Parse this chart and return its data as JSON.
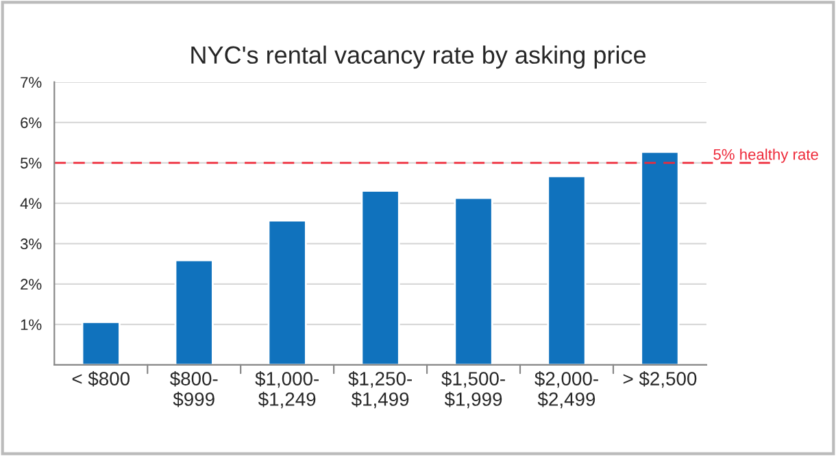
{
  "chart_data": {
    "type": "bar",
    "title": "NYC's rental vacancy rate by asking price",
    "categories": [
      "< $800",
      "$800-\n$999",
      "$1,000-\n$1,249",
      "$1,250-\n$1,499",
      "$1,500-\n$1,999",
      "$2,000-\n$2,499",
      "> $2,500"
    ],
    "values": [
      1.06,
      2.59,
      3.57,
      4.31,
      4.13,
      4.67,
      5.27
    ],
    "color": "#1072bd",
    "ylim": [
      0,
      7
    ],
    "yticks": [
      {
        "value": 0,
        "label": null
      },
      {
        "value": 1,
        "label": "1%"
      },
      {
        "value": 2,
        "label": "2%"
      },
      {
        "value": 3,
        "label": "3%"
      },
      {
        "value": 4,
        "label": "4%"
      },
      {
        "value": 5,
        "label": "5%"
      },
      {
        "value": 6,
        "label": "6%"
      },
      {
        "value": 7,
        "label": "7%"
      }
    ],
    "grid": "y",
    "ref_lines": [
      {
        "axis": "y",
        "value": 5,
        "label": "5% healthy rate",
        "color": "#ee2a3a",
        "line_style": "dashed"
      }
    ]
  }
}
